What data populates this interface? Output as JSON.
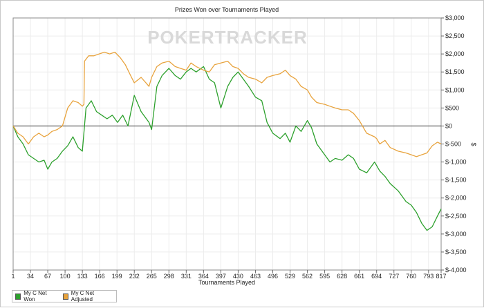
{
  "chart_data": {
    "type": "line",
    "title": "Prizes Won over Tournaments Played",
    "watermark": "POKERTRACKER",
    "xlabel": "Tournaments Played",
    "ylabel": "$",
    "xlim": [
      1,
      817
    ],
    "ylim": [
      -4000,
      3000
    ],
    "x_ticks": [
      1,
      34,
      67,
      100,
      133,
      166,
      199,
      232,
      265,
      298,
      331,
      364,
      397,
      430,
      463,
      496,
      529,
      562,
      595,
      628,
      661,
      694,
      727,
      760,
      793,
      817
    ],
    "y_ticks": [
      3000,
      2500,
      2000,
      1500,
      1000,
      500,
      0,
      -500,
      -1000,
      -1500,
      -2000,
      -2500,
      -3000,
      -3500,
      -4000
    ],
    "y_tick_labels": [
      "$3,000",
      "$2,500",
      "$2,000",
      "$1,500",
      "$1,000",
      "$500",
      "$0",
      "$-500",
      "$-1,000",
      "$-1,500",
      "$-2,000",
      "$-2,500",
      "$-3,000",
      "$-3,500",
      "$-4,000"
    ],
    "x_tick_labels": [
      "1",
      "34",
      "67",
      "100",
      "133",
      "166",
      "199",
      "232",
      "265",
      "298",
      "331",
      "364",
      "397",
      "430",
      "463",
      "496",
      "529",
      "562",
      "595",
      "628",
      "661",
      "694",
      "727",
      "760",
      "793",
      "817"
    ],
    "grid": true,
    "legend_position": "bottom-left",
    "series": [
      {
        "name": "My C Net Won",
        "color": "#2ca02c",
        "x": [
          1,
          10,
          20,
          30,
          40,
          50,
          60,
          67,
          75,
          85,
          95,
          105,
          115,
          125,
          133,
          140,
          150,
          160,
          170,
          180,
          190,
          200,
          210,
          220,
          232,
          245,
          260,
          265,
          275,
          285,
          298,
          310,
          320,
          331,
          340,
          350,
          364,
          375,
          385,
          397,
          410,
          420,
          430,
          440,
          450,
          463,
          475,
          485,
          496,
          510,
          520,
          529,
          540,
          550,
          562,
          570,
          580,
          595,
          605,
          615,
          628,
          640,
          650,
          661,
          675,
          690,
          700,
          710,
          720,
          735,
          750,
          760,
          770,
          780,
          790,
          800,
          810,
          817
        ],
        "y": [
          0,
          -300,
          -500,
          -800,
          -900,
          -1000,
          -950,
          -1200,
          -1000,
          -900,
          -700,
          -550,
          -300,
          -600,
          -700,
          500,
          700,
          400,
          300,
          200,
          300,
          100,
          300,
          0,
          850,
          400,
          100,
          -100,
          1100,
          1400,
          1600,
          1400,
          1300,
          1500,
          1600,
          1500,
          1650,
          1300,
          1200,
          500,
          1100,
          1350,
          1500,
          1300,
          1100,
          800,
          700,
          100,
          -200,
          -350,
          -200,
          -450,
          0,
          -150,
          150,
          -50,
          -500,
          -800,
          -1000,
          -900,
          -950,
          -800,
          -900,
          -1200,
          -1300,
          -1000,
          -1250,
          -1400,
          -1600,
          -1800,
          -2100,
          -2200,
          -2400,
          -2700,
          -2900,
          -2800,
          -2500,
          -2300
        ]
      },
      {
        "name": "My C Net Adjusted",
        "color": "#e8a33d",
        "x": [
          1,
          10,
          20,
          30,
          40,
          50,
          60,
          67,
          75,
          85,
          95,
          105,
          115,
          125,
          133,
          136,
          137,
          145,
          155,
          165,
          175,
          185,
          195,
          205,
          215,
          225,
          232,
          245,
          260,
          265,
          275,
          285,
          298,
          310,
          320,
          331,
          340,
          350,
          364,
          375,
          385,
          397,
          410,
          420,
          430,
          440,
          450,
          463,
          475,
          485,
          496,
          510,
          520,
          529,
          540,
          550,
          562,
          570,
          580,
          595,
          605,
          615,
          628,
          640,
          650,
          661,
          675,
          690,
          694,
          700,
          710,
          720,
          735,
          750,
          760,
          770,
          780,
          790,
          800,
          810,
          817
        ],
        "y": [
          0,
          -200,
          -300,
          -500,
          -300,
          -200,
          -300,
          -250,
          -150,
          -100,
          0,
          500,
          700,
          650,
          550,
          600,
          1800,
          1950,
          1950,
          2000,
          2050,
          2000,
          2050,
          1900,
          1700,
          1400,
          1200,
          1350,
          1100,
          1350,
          1650,
          1750,
          1800,
          1650,
          1600,
          1550,
          1750,
          1650,
          1550,
          1500,
          1700,
          1750,
          1800,
          1650,
          1600,
          1450,
          1350,
          1300,
          1200,
          1350,
          1400,
          1450,
          1550,
          1400,
          1300,
          1100,
          1000,
          800,
          650,
          600,
          550,
          500,
          450,
          450,
          350,
          150,
          -200,
          -300,
          -350,
          -500,
          -400,
          -600,
          -700,
          -750,
          -800,
          -850,
          -800,
          -750,
          -550,
          -450,
          -500
        ]
      }
    ]
  }
}
